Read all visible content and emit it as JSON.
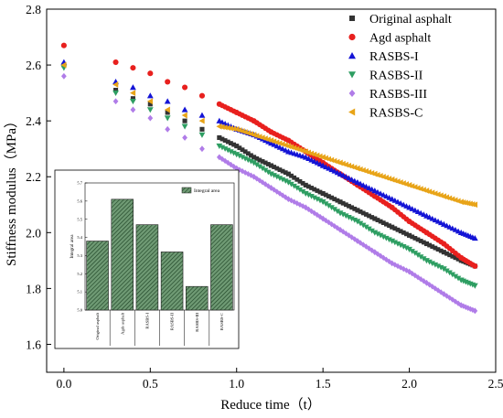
{
  "chart_data": [
    {
      "type": "scatter",
      "title": "",
      "xlabel": "Reduce time（t）",
      "ylabel": "Stiffness modulus（MPa）",
      "xlim": [
        -0.1,
        2.5
      ],
      "ylim": [
        1.5,
        2.8
      ],
      "xticks": [
        0.0,
        0.5,
        1.0,
        1.5,
        2.0,
        2.5
      ],
      "xtick_labels": [
        "0.0",
        "0.5",
        "1.0",
        "1.5",
        "2.0",
        "2.5"
      ],
      "yticks": [
        1.6,
        1.8,
        2.0,
        2.2,
        2.4,
        2.6,
        2.8
      ],
      "ytick_labels": [
        "1.6",
        "1.8",
        "2.0",
        "2.2",
        "2.4",
        "2.6",
        "2.8"
      ],
      "legend_position": "top-right",
      "x": [
        0.0,
        0.3,
        0.4,
        0.5,
        0.6,
        0.7,
        0.8,
        0.9,
        1.0,
        1.1,
        1.2,
        1.3,
        1.4,
        1.5,
        1.6,
        1.7,
        1.8,
        1.9,
        2.0,
        2.1,
        2.2,
        2.3,
        2.38
      ],
      "series": [
        {
          "name": "Original asphalt",
          "marker": "square",
          "color": "#333333",
          "values": [
            2.6,
            2.51,
            2.48,
            2.46,
            2.43,
            2.4,
            2.37,
            2.34,
            2.31,
            2.27,
            2.24,
            2.21,
            2.17,
            2.14,
            2.11,
            2.08,
            2.05,
            2.02,
            1.99,
            1.96,
            1.93,
            1.9,
            1.88
          ]
        },
        {
          "name": "Agd asphalt",
          "marker": "circle",
          "color": "#e8201e",
          "values": [
            2.67,
            2.61,
            2.59,
            2.57,
            2.54,
            2.52,
            2.49,
            2.46,
            2.43,
            2.4,
            2.36,
            2.33,
            2.29,
            2.25,
            2.21,
            2.17,
            2.13,
            2.09,
            2.04,
            2.0,
            1.96,
            1.91,
            1.88
          ]
        },
        {
          "name": "RASBS-I",
          "marker": "triangle-up",
          "color": "#1414d6",
          "values": [
            2.61,
            2.54,
            2.52,
            2.49,
            2.47,
            2.44,
            2.42,
            2.4,
            2.37,
            2.35,
            2.32,
            2.29,
            2.27,
            2.24,
            2.21,
            2.18,
            2.15,
            2.12,
            2.09,
            2.06,
            2.03,
            2.0,
            1.98
          ]
        },
        {
          "name": "RASBS-II",
          "marker": "triangle-down",
          "color": "#2e9e62",
          "values": [
            2.59,
            2.5,
            2.47,
            2.44,
            2.41,
            2.38,
            2.35,
            2.31,
            2.28,
            2.25,
            2.21,
            2.18,
            2.14,
            2.11,
            2.07,
            2.04,
            2.0,
            1.97,
            1.94,
            1.9,
            1.87,
            1.83,
            1.81
          ]
        },
        {
          "name": "RASBS-III",
          "marker": "diamond",
          "color": "#b07ce8",
          "values": [
            2.56,
            2.47,
            2.44,
            2.41,
            2.37,
            2.34,
            2.3,
            2.27,
            2.23,
            2.2,
            2.16,
            2.12,
            2.09,
            2.05,
            2.01,
            1.97,
            1.93,
            1.89,
            1.86,
            1.82,
            1.78,
            1.74,
            1.72
          ]
        },
        {
          "name": "RASBS-C",
          "marker": "triangle-left",
          "color": "#e8a418",
          "values": [
            2.6,
            2.53,
            2.5,
            2.47,
            2.44,
            2.42,
            2.4,
            2.38,
            2.37,
            2.35,
            2.33,
            2.31,
            2.29,
            2.27,
            2.25,
            2.23,
            2.21,
            2.19,
            2.17,
            2.15,
            2.13,
            2.11,
            2.1
          ]
        }
      ]
    },
    {
      "type": "bar",
      "title": "",
      "xlabel": "",
      "ylabel": "Integral area",
      "ylim": [
        5.0,
        5.7
      ],
      "yticks": [
        5.0,
        5.1,
        5.2,
        5.3,
        5.4,
        5.5,
        5.6,
        5.7
      ],
      "ytick_labels": [
        "5.0",
        "5.1",
        "5.2",
        "5.3",
        "5.4",
        "5.5",
        "5.6",
        "5.7"
      ],
      "legend_position": "top-right",
      "categories": [
        "Original asphalt",
        "Agds asphalt",
        "RASBS-I",
        "RASBS-II",
        "RASBS-III",
        "RASBS-C"
      ],
      "series": [
        {
          "name": "Integral area",
          "color": "#4a7a52",
          "values": [
            5.38,
            5.61,
            5.47,
            5.32,
            5.13,
            5.47
          ]
        }
      ]
    }
  ]
}
